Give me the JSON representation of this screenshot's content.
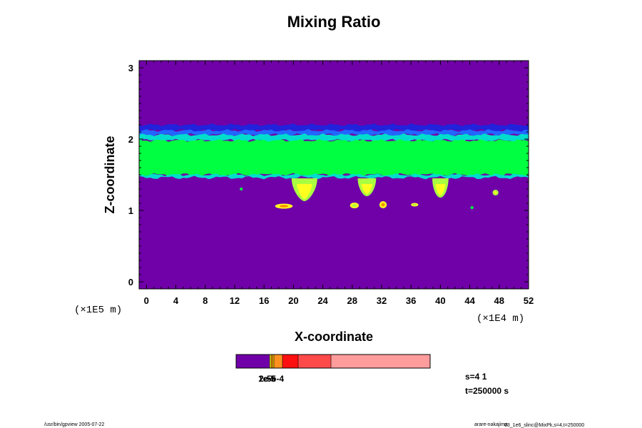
{
  "chart_data": {
    "type": "heatmap",
    "title": "Mixing Ratio",
    "xlabel": "X-coordinate",
    "ylabel": "Z-coordinate",
    "x_unit": "(×1E4 m)",
    "y_unit": "(×1E5 m)",
    "xlim": [
      -1,
      52
    ],
    "ylim": [
      -0.1,
      3.1
    ],
    "x_ticks": [
      "0",
      "4",
      "8",
      "12",
      "16",
      "20",
      "24",
      "28",
      "32",
      "36",
      "40",
      "44",
      "48",
      "52"
    ],
    "x_tick_values": [
      0,
      4,
      8,
      12,
      16,
      20,
      24,
      28,
      32,
      36,
      40,
      44,
      48,
      52
    ],
    "y_ticks": [
      "0",
      "1",
      "2",
      "3"
    ],
    "y_tick_values": [
      0,
      1,
      2,
      3
    ],
    "colors": {
      "background": "#7000a8",
      "dark_blue": "#2222dd",
      "blue": "#2266ff",
      "cyan": "#00ddcc",
      "green": "#00ff40",
      "light_green": "#aaff40",
      "yellow": "#ffff20",
      "orange": "#ff9000",
      "red": "#ff2000"
    },
    "bands": [
      {
        "name": "dark-blue-top",
        "z_from": 2.12,
        "z_to": 2.2,
        "color": "#2222dd"
      },
      {
        "name": "blue-layer",
        "z_from": 2.06,
        "z_to": 2.12,
        "color": "#2266ff"
      },
      {
        "name": "cyan-layer",
        "z_from": 1.98,
        "z_to": 2.06,
        "color": "#00ddcc"
      },
      {
        "name": "green-layer",
        "z_from": 1.5,
        "z_to": 1.98,
        "color": "#00ff40"
      },
      {
        "name": "cyan-base",
        "z_from": 1.46,
        "z_to": 1.5,
        "color": "#00ddcc"
      }
    ],
    "plumes": [
      {
        "x": 21.5,
        "z_top": 1.45,
        "z_bottom": 1.13,
        "width": 3.5,
        "color": "#aaff40",
        "core": "#ffff20"
      },
      {
        "x": 30,
        "z_top": 1.45,
        "z_bottom": 1.2,
        "width": 2.5,
        "color": "#aaff40",
        "core": "#ffff20"
      },
      {
        "x": 40,
        "z_top": 1.45,
        "z_bottom": 1.18,
        "width": 2.2,
        "color": "#aaff40",
        "core": "#ffff20"
      }
    ],
    "patches": [
      {
        "x": 18.7,
        "z": 1.06,
        "rx": 1.2,
        "rz": 0.035,
        "color": "#ffff20",
        "core": "#ff9000"
      },
      {
        "x": 32.2,
        "z": 1.08,
        "rx": 0.5,
        "rz": 0.05,
        "color": "#ffff20",
        "core": "#ff9000"
      },
      {
        "x": 28.3,
        "z": 1.07,
        "rx": 0.6,
        "rz": 0.04,
        "color": "#ffff20",
        "core": "#aaff40"
      },
      {
        "x": 36.5,
        "z": 1.08,
        "rx": 0.5,
        "rz": 0.025,
        "color": "#ffff20",
        "core": "#aaff40"
      },
      {
        "x": 44.3,
        "z": 1.04,
        "rx": 0.2,
        "rz": 0.02,
        "color": "#00ff40",
        "core": "#00ff40"
      },
      {
        "x": 47.5,
        "z": 1.25,
        "rx": 0.4,
        "rz": 0.04,
        "color": "#aaff40",
        "core": "#ffff20"
      },
      {
        "x": 12.9,
        "z": 1.3,
        "rx": 0.2,
        "rz": 0.02,
        "color": "#00ff40",
        "core": "#00ff40"
      }
    ],
    "colorbar": {
      "segments": [
        {
          "width": 47,
          "color": "#7000a8"
        },
        {
          "width": 2,
          "color": "#ffff20"
        },
        {
          "width": 2,
          "color": "#ff9000"
        },
        {
          "width": 2,
          "color": "#ffcc00"
        },
        {
          "width": 12,
          "color": "#ff9020"
        },
        {
          "width": 22,
          "color": "#ff1010"
        },
        {
          "width": 46,
          "color": "#ff4a4a"
        },
        {
          "width": 139,
          "color": "#ff9c9c"
        }
      ],
      "labels": [
        "1e-5",
        "2e-5",
        "5e-4"
      ]
    },
    "annotations": {
      "s": "s=4 1",
      "t": "t=250000 s",
      "footer_left": "/usr/bin/gpview 2005-07-22",
      "footer_right_main": "arare-nakajima",
      "footer_right_small": "03_1e6_slinc@MixPk,s=4,t=250000"
    }
  }
}
